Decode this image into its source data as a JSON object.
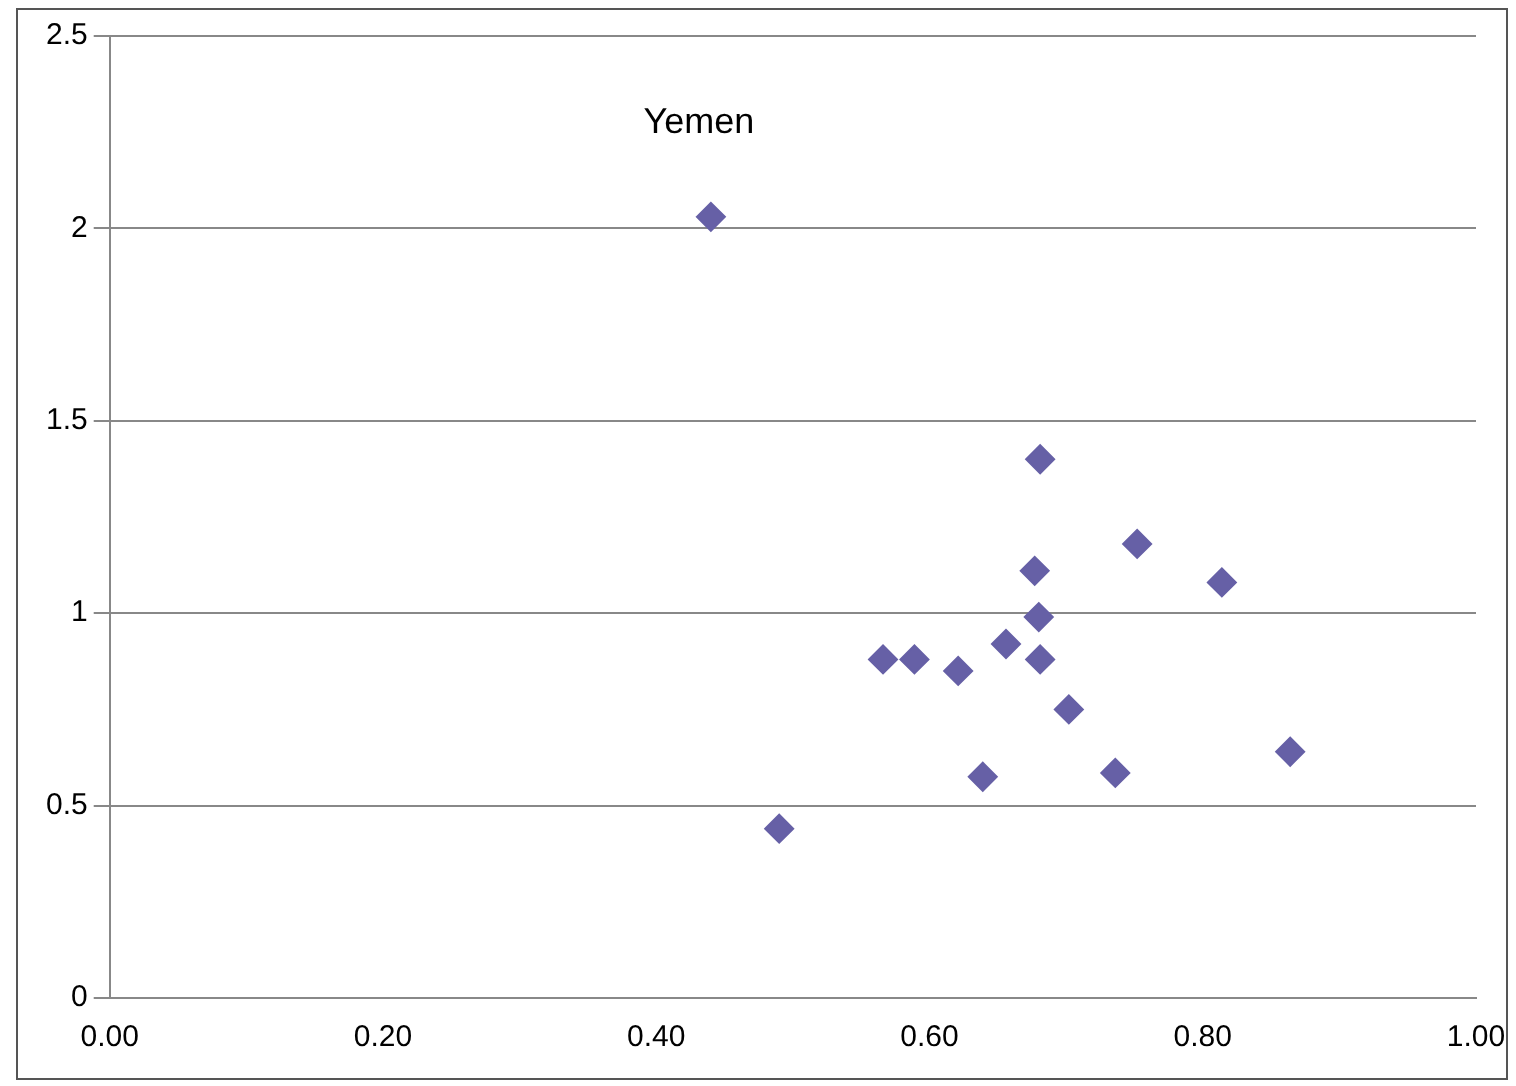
{
  "chart_data": {
    "type": "scatter",
    "x": [
      0.44,
      0.49,
      0.566,
      0.589,
      0.621,
      0.639,
      0.656,
      0.677,
      0.68,
      0.681,
      0.681,
      0.702,
      0.736,
      0.752,
      0.814,
      0.864
    ],
    "values": [
      2.03,
      0.44,
      0.88,
      0.88,
      0.85,
      0.575,
      0.92,
      1.11,
      0.99,
      1.4,
      0.88,
      0.75,
      0.585,
      1.18,
      1.08,
      0.64
    ],
    "color": "#6660a6",
    "marker": "diamond",
    "grid": "y",
    "xlim": [
      0,
      1
    ],
    "xticks": [
      {
        "value": 0,
        "label": "0.00"
      },
      {
        "value": 0.2,
        "label": "0.20"
      },
      {
        "value": 0.4,
        "label": "0.40"
      },
      {
        "value": 0.6,
        "label": "0.60"
      },
      {
        "value": 0.8,
        "label": "0.80"
      },
      {
        "value": 1,
        "label": "1.00"
      }
    ],
    "ylim": [
      0,
      2.5
    ],
    "yticks": [
      0,
      0.5,
      1,
      1.5,
      2,
      2.5
    ],
    "annotations": [
      {
        "text": "Yemen",
        "x": 0.44,
        "y": 2.03
      }
    ]
  }
}
